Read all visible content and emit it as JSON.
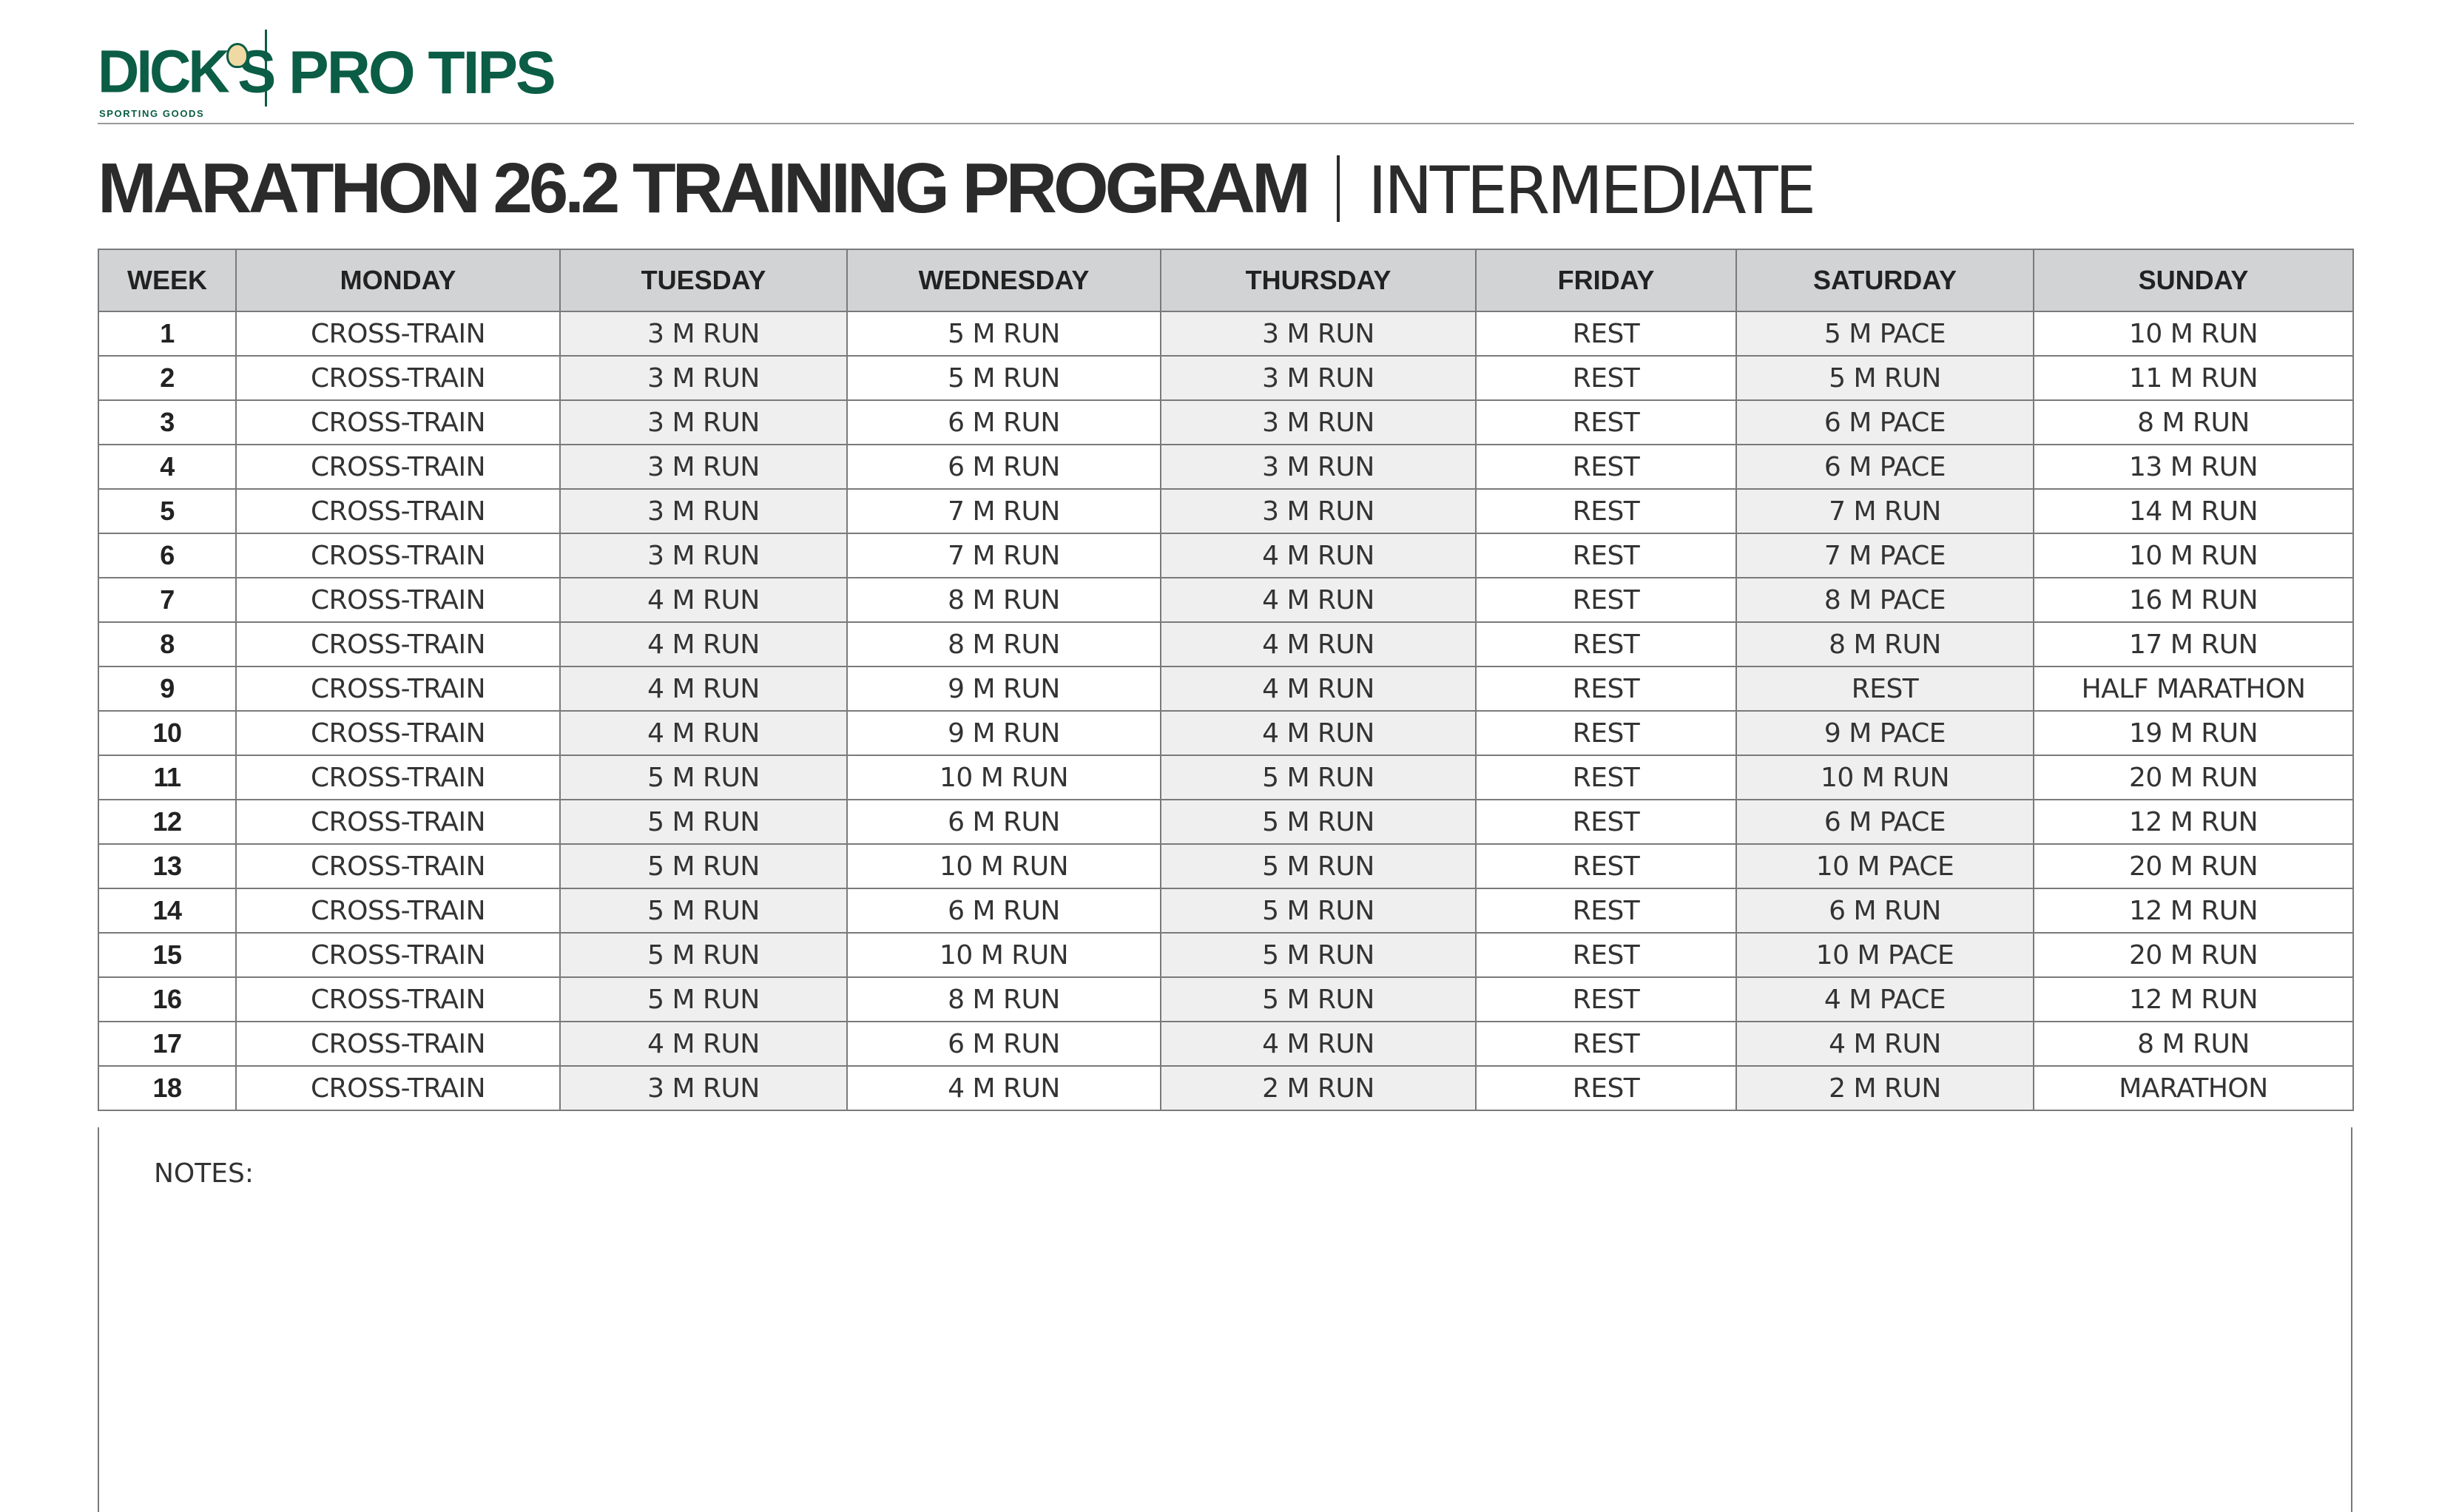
{
  "brand": {
    "logo_text": "DICK'S",
    "logo_subtext": "SPORTING GOODS",
    "section": "PRO TIPS",
    "color": "#0b5d45"
  },
  "title": {
    "main": "MARATHON 26.2 TRAINING PROGRAM",
    "level": "INTERMEDIATE"
  },
  "table": {
    "headers": [
      "WEEK",
      "MONDAY",
      "TUESDAY",
      "WEDNESDAY",
      "THURSDAY",
      "FRIDAY",
      "SATURDAY",
      "SUNDAY"
    ],
    "rows": [
      [
        "1",
        "CROSS-TRAIN",
        "3 M RUN",
        "5 M RUN",
        "3 M RUN",
        "REST",
        "5 M PACE",
        "10 M RUN"
      ],
      [
        "2",
        "CROSS-TRAIN",
        "3 M RUN",
        "5 M RUN",
        "3 M RUN",
        "REST",
        "5 M RUN",
        "11 M RUN"
      ],
      [
        "3",
        "CROSS-TRAIN",
        "3 M RUN",
        "6 M RUN",
        "3 M RUN",
        "REST",
        "6 M PACE",
        "8 M RUN"
      ],
      [
        "4",
        "CROSS-TRAIN",
        "3 M RUN",
        "6 M RUN",
        "3 M RUN",
        "REST",
        "6 M PACE",
        "13 M RUN"
      ],
      [
        "5",
        "CROSS-TRAIN",
        "3 M RUN",
        "7 M RUN",
        "3 M RUN",
        "REST",
        "7 M RUN",
        "14 M RUN"
      ],
      [
        "6",
        "CROSS-TRAIN",
        "3 M RUN",
        "7 M RUN",
        "4 M RUN",
        "REST",
        "7 M PACE",
        "10 M RUN"
      ],
      [
        "7",
        "CROSS-TRAIN",
        "4 M RUN",
        "8 M RUN",
        "4 M RUN",
        "REST",
        "8 M PACE",
        "16 M RUN"
      ],
      [
        "8",
        "CROSS-TRAIN",
        "4 M RUN",
        "8 M RUN",
        "4 M RUN",
        "REST",
        "8 M RUN",
        "17 M RUN"
      ],
      [
        "9",
        "CROSS-TRAIN",
        "4 M RUN",
        "9 M RUN",
        "4 M RUN",
        "REST",
        "REST",
        "HALF MARATHON"
      ],
      [
        "10",
        "CROSS-TRAIN",
        "4 M RUN",
        "9 M RUN",
        "4 M RUN",
        "REST",
        "9 M PACE",
        "19 M RUN"
      ],
      [
        "11",
        "CROSS-TRAIN",
        "5 M RUN",
        "10 M RUN",
        "5 M RUN",
        "REST",
        "10 M RUN",
        "20 M RUN"
      ],
      [
        "12",
        "CROSS-TRAIN",
        "5 M RUN",
        "6 M RUN",
        "5 M RUN",
        "REST",
        "6 M PACE",
        "12 M RUN"
      ],
      [
        "13",
        "CROSS-TRAIN",
        "5 M RUN",
        "10 M RUN",
        "5 M RUN",
        "REST",
        "10 M PACE",
        "20 M RUN"
      ],
      [
        "14",
        "CROSS-TRAIN",
        "5 M RUN",
        "6 M RUN",
        "5 M RUN",
        "REST",
        "6 M RUN",
        "12 M RUN"
      ],
      [
        "15",
        "CROSS-TRAIN",
        "5 M RUN",
        "10 M RUN",
        "5 M RUN",
        "REST",
        "10 M PACE",
        "20 M RUN"
      ],
      [
        "16",
        "CROSS-TRAIN",
        "5 M RUN",
        "8 M RUN",
        "5 M RUN",
        "REST",
        "4 M PACE",
        "12 M RUN"
      ],
      [
        "17",
        "CROSS-TRAIN",
        "4 M RUN",
        "6 M RUN",
        "4 M RUN",
        "REST",
        "4 M RUN",
        "8 M RUN"
      ],
      [
        "18",
        "CROSS-TRAIN",
        "3 M RUN",
        "4 M RUN",
        "2 M RUN",
        "REST",
        "2 M RUN",
        "MARATHON"
      ]
    ]
  },
  "notes": {
    "label": "NOTES:"
  }
}
